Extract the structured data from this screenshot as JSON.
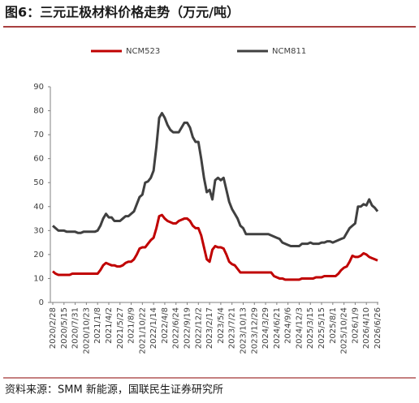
{
  "chart_data": {
    "type": "line",
    "title": "图6：三元正极材料价格走势（万元/吨）",
    "source": "资料来源：SMM 新能源，国联民生证券研究所",
    "categories": [
      "2020/2/28",
      null,
      null,
      null,
      "2020/5/15",
      null,
      null,
      null,
      "2020/7/31",
      null,
      null,
      null,
      "2020/10/23",
      null,
      null,
      null,
      "2021/1/8",
      null,
      null,
      null,
      "2021/4/2",
      null,
      null,
      null,
      "2021/5/27",
      null,
      null,
      null,
      "2021/8/9",
      null,
      null,
      null,
      "2021/10/22",
      null,
      null,
      null,
      "2022/1/14",
      null,
      null,
      null,
      "2022/4/8",
      null,
      null,
      null,
      "2022/6/24",
      null,
      null,
      null,
      "2022/9/19",
      null,
      null,
      null,
      "2022/12/2",
      null,
      null,
      null,
      "2023/2/17",
      null,
      null,
      null,
      "2023/5/4",
      null,
      null,
      null,
      "2023/7/21",
      null,
      null,
      null,
      "2023/10/13",
      null,
      null,
      null,
      "2023/12/29",
      null,
      null,
      null,
      "2024/3/29",
      null,
      null,
      null,
      "2024/6/21",
      null,
      null,
      null,
      "2024/9/6",
      null,
      null,
      null,
      "2024/12/3",
      null,
      null,
      null,
      "2025/3/15",
      null,
      null,
      null,
      "2025/5/15",
      null,
      null,
      null,
      "2025/8/1",
      null,
      null,
      null,
      "2025/10/24",
      null,
      null,
      null,
      "2026/1/9",
      null,
      null,
      null,
      "2026/4/10",
      null,
      null,
      null,
      "2026/6/26"
    ],
    "series": [
      {
        "name": "NCM523",
        "color": "#c00000",
        "values": [
          13,
          12,
          11.5,
          11.5,
          11.5,
          11.5,
          11.5,
          12,
          12,
          12,
          12,
          12,
          12,
          12,
          12,
          12,
          12,
          13.5,
          15.5,
          16.5,
          16,
          15.5,
          15.5,
          15,
          15,
          15.5,
          16.5,
          17,
          17,
          18,
          20,
          22.5,
          23,
          23,
          24.5,
          26,
          27,
          31,
          36,
          36.5,
          35,
          34,
          33.5,
          33,
          33,
          34,
          34.5,
          35,
          35,
          34,
          32,
          31,
          31,
          28,
          23,
          18,
          17,
          22,
          23.5,
          23,
          23,
          22.5,
          20,
          17,
          16,
          15.5,
          14,
          12.5,
          12.5,
          12.5,
          12.5,
          12.5,
          12.5,
          12.5,
          12.5,
          12.5,
          12.5,
          12.5,
          12.5,
          11,
          10.5,
          10,
          10,
          9.5,
          9.5,
          9.5,
          9.5,
          9.5,
          9.5,
          10,
          10,
          10,
          10,
          10,
          10.5,
          10.5,
          10.5,
          11,
          11,
          11,
          11,
          11,
          12,
          13.5,
          14.5,
          15,
          17,
          19.5,
          19,
          19,
          19.5,
          20.5,
          20,
          19,
          18.5,
          18,
          17.5
        ]
      },
      {
        "name": "NCM811",
        "color": "#404040",
        "values": [
          32,
          31,
          30,
          30,
          30,
          29.5,
          29.5,
          29.5,
          29.5,
          29,
          29,
          29.5,
          29.5,
          29.5,
          29.5,
          29.5,
          30,
          32,
          35,
          37,
          35.5,
          35.5,
          34,
          34,
          34,
          35,
          36,
          36,
          37,
          38,
          41,
          44,
          45,
          50,
          50.5,
          52,
          55,
          65,
          77,
          79,
          77,
          74,
          72,
          71,
          71,
          71,
          73,
          75,
          75,
          73,
          69,
          67,
          67,
          60,
          52,
          46,
          47,
          43,
          51,
          52,
          51,
          52,
          47,
          42,
          39,
          37,
          35,
          32,
          31,
          28.5,
          28.5,
          28.5,
          28.5,
          28.5,
          28.5,
          28.5,
          28.5,
          28.5,
          28,
          27.5,
          27,
          26.5,
          25,
          24.5,
          24,
          23.5,
          23.5,
          23.5,
          23.5,
          24.5,
          24.5,
          24.5,
          25,
          24.5,
          24.5,
          24.5,
          25,
          25,
          25.5,
          25.5,
          25,
          25.5,
          26,
          26.5,
          27,
          29,
          31,
          32,
          33,
          40,
          40,
          41,
          40.5,
          43,
          40.5,
          39.5,
          38
        ]
      }
    ],
    "ylim": [
      0,
      90
    ],
    "yticks": [
      0,
      10,
      20,
      30,
      40,
      50,
      60,
      70,
      80,
      90
    ],
    "legend": "top"
  }
}
